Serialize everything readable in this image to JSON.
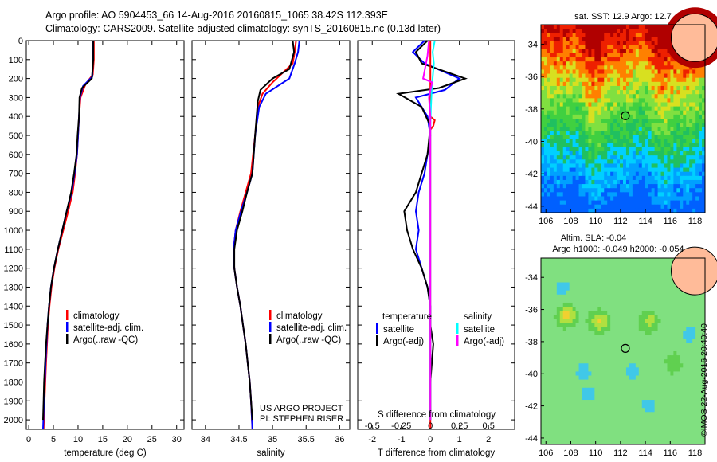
{
  "header": {
    "line1": "Argo profile: AO 5904453_66 14-Aug-2016 20160815_1065 38.42S 112.393E",
    "line2": "Climatology: CARS2009. Satellite-adjusted climatology: synTS_20160815.nc (0.13d later)"
  },
  "credit": "©IMOS 22-Aug-2016 20:40:40",
  "colors": {
    "climatology": "#ff0000",
    "satellite_t": "#0000ff",
    "argo": "#000000",
    "satellite_s": "#00ffff",
    "argo_s": "#ff00ff",
    "land": "#ffbb99"
  },
  "chart_data": [
    {
      "id": "temperature",
      "type": "line",
      "xlabel": "temperature (deg C)",
      "ylabel": "",
      "xlim": [
        -0.5,
        31.5
      ],
      "ylim": [
        2050,
        0
      ],
      "xticks": [
        0,
        5,
        10,
        15,
        20,
        25,
        30
      ],
      "yticks": [
        0,
        100,
        200,
        300,
        400,
        500,
        600,
        700,
        800,
        900,
        1000,
        1100,
        1200,
        1300,
        1400,
        1500,
        1600,
        1700,
        1800,
        1900,
        2000
      ],
      "legend": [
        "climatology",
        "satellite-adj. clim.",
        "Argo(..raw -QC)"
      ],
      "series": [
        {
          "name": "climatology",
          "color": "#ff0000",
          "points": [
            [
              13.2,
              0
            ],
            [
              13.2,
              100
            ],
            [
              13.0,
              180
            ],
            [
              11.5,
              230
            ],
            [
              10.5,
              300
            ],
            [
              10.2,
              400
            ],
            [
              10.0,
              500
            ],
            [
              9.8,
              600
            ],
            [
              9.4,
              700
            ],
            [
              8.9,
              800
            ],
            [
              8.0,
              900
            ],
            [
              7.0,
              1000
            ],
            [
              6.0,
              1100
            ],
            [
              5.2,
              1200
            ],
            [
              4.6,
              1300
            ],
            [
              4.2,
              1400
            ],
            [
              3.9,
              1500
            ],
            [
              3.5,
              1700
            ],
            [
              3.2,
              1900
            ],
            [
              3.0,
              2050
            ]
          ]
        },
        {
          "name": "satellite-adj. clim.",
          "color": "#0000ff",
          "points": [
            [
              13.0,
              0
            ],
            [
              13.0,
              100
            ],
            [
              12.9,
              190
            ],
            [
              11.0,
              240
            ],
            [
              10.4,
              300
            ],
            [
              10.2,
              400
            ],
            [
              10.0,
              500
            ],
            [
              9.8,
              600
            ],
            [
              9.3,
              700
            ],
            [
              8.7,
              800
            ],
            [
              7.7,
              900
            ],
            [
              6.8,
              1000
            ],
            [
              5.9,
              1100
            ],
            [
              5.1,
              1200
            ],
            [
              4.5,
              1300
            ],
            [
              4.1,
              1400
            ],
            [
              3.8,
              1500
            ],
            [
              3.4,
              1700
            ],
            [
              3.1,
              1900
            ],
            [
              2.9,
              2050
            ]
          ]
        },
        {
          "name": "Argo(..raw -QC)",
          "color": "#000000",
          "points": [
            [
              13.1,
              0
            ],
            [
              13.1,
              100
            ],
            [
              12.8,
              200
            ],
            [
              10.8,
              250
            ],
            [
              10.3,
              300
            ],
            [
              10.2,
              400
            ],
            [
              9.9,
              500
            ],
            [
              9.7,
              600
            ],
            [
              9.2,
              700
            ],
            [
              8.6,
              800
            ],
            [
              7.7,
              900
            ],
            [
              6.8,
              1000
            ],
            [
              5.9,
              1100
            ],
            [
              5.1,
              1200
            ],
            [
              4.5,
              1300
            ],
            [
              4.1,
              1400
            ],
            [
              3.8,
              1500
            ],
            [
              3.5,
              1600
            ],
            [
              3.3,
              1700
            ],
            [
              3.1,
              1800
            ],
            [
              3.0,
              1900
            ],
            [
              2.9,
              2000
            ]
          ]
        }
      ]
    },
    {
      "id": "salinity",
      "type": "line",
      "xlabel": "salinity",
      "xlim": [
        33.8,
        36.15
      ],
      "ylim": [
        2050,
        0
      ],
      "xticks": [
        34,
        34.5,
        35,
        35.5,
        36
      ],
      "legend": [
        "climatology",
        "satellite-adj. clim.",
        "Argo(..raw -QC)"
      ],
      "annotation": [
        "US ARGO PROJECT",
        "PI: STEPHEN RISER"
      ],
      "series": [
        {
          "name": "climatology",
          "color": "#ff0000",
          "points": [
            [
              35.35,
              0
            ],
            [
              35.33,
              60
            ],
            [
              35.3,
              120
            ],
            [
              35.0,
              220
            ],
            [
              34.85,
              280
            ],
            [
              34.78,
              350
            ],
            [
              34.74,
              500
            ],
            [
              34.68,
              700
            ],
            [
              34.6,
              800
            ],
            [
              34.52,
              900
            ],
            [
              34.45,
              1000
            ],
            [
              34.42,
              1100
            ],
            [
              34.43,
              1200
            ],
            [
              34.47,
              1300
            ],
            [
              34.52,
              1400
            ],
            [
              34.56,
              1500
            ],
            [
              34.6,
              1600
            ],
            [
              34.63,
              1700
            ],
            [
              34.66,
              1800
            ],
            [
              34.68,
              1900
            ],
            [
              34.7,
              2050
            ]
          ]
        },
        {
          "name": "satellite-adj. clim.",
          "color": "#0000ff",
          "points": [
            [
              35.4,
              0
            ],
            [
              35.38,
              60
            ],
            [
              35.33,
              120
            ],
            [
              35.25,
              200
            ],
            [
              34.9,
              280
            ],
            [
              34.8,
              350
            ],
            [
              34.74,
              500
            ],
            [
              34.7,
              700
            ],
            [
              34.62,
              800
            ],
            [
              34.53,
              900
            ],
            [
              34.45,
              1000
            ],
            [
              34.42,
              1100
            ],
            [
              34.43,
              1200
            ],
            [
              34.47,
              1300
            ],
            [
              34.52,
              1400
            ],
            [
              34.56,
              1500
            ],
            [
              34.6,
              1600
            ],
            [
              34.63,
              1700
            ],
            [
              34.66,
              1800
            ],
            [
              34.68,
              1900
            ],
            [
              34.7,
              2050
            ]
          ]
        },
        {
          "name": "Argo(..raw -QC)",
          "color": "#000000",
          "points": [
            [
              35.3,
              0
            ],
            [
              35.32,
              60
            ],
            [
              35.25,
              150
            ],
            [
              35.0,
              200
            ],
            [
              34.82,
              260
            ],
            [
              34.78,
              320
            ],
            [
              34.74,
              500
            ],
            [
              34.7,
              700
            ],
            [
              34.62,
              800
            ],
            [
              34.55,
              900
            ],
            [
              34.47,
              1000
            ],
            [
              34.43,
              1100
            ],
            [
              34.43,
              1200
            ],
            [
              34.47,
              1300
            ],
            [
              34.52,
              1400
            ],
            [
              34.56,
              1500
            ],
            [
              34.6,
              1600
            ],
            [
              34.63,
              1700
            ],
            [
              34.66,
              1800
            ],
            [
              34.68,
              1900
            ],
            [
              34.7,
              2000
            ]
          ]
        }
      ]
    },
    {
      "id": "difference",
      "type": "line",
      "xlabel": "T difference from climatology",
      "xlabel_top": "S difference from climatology",
      "xlim": [
        -2.5,
        2.9
      ],
      "ylim": [
        2050,
        0
      ],
      "xticks": [
        -2,
        -1,
        0,
        1,
        2
      ],
      "xticks_s": [
        -0.5,
        -0.25,
        0,
        0.25,
        0.5
      ],
      "legend_headers": [
        "temperature",
        "salinity"
      ],
      "legend": [
        "satellite",
        "Argo(-adj)",
        "satellite",
        "Argo(-adj)"
      ],
      "series": [
        {
          "name": "T satellite",
          "color": "#0000ff",
          "points": [
            [
              -0.2,
              0
            ],
            [
              -0.6,
              60
            ],
            [
              -0.2,
              120
            ],
            [
              1.0,
              200
            ],
            [
              0.5,
              260
            ],
            [
              -0.5,
              300
            ],
            [
              -0.1,
              400
            ],
            [
              0,
              500
            ],
            [
              -0.1,
              600
            ],
            [
              -0.2,
              700
            ],
            [
              -0.4,
              800
            ],
            [
              -0.5,
              900
            ],
            [
              -0.4,
              1000
            ],
            [
              -0.5,
              1100
            ],
            [
              -0.3,
              1200
            ],
            [
              -0.1,
              1300
            ],
            [
              0,
              1400
            ],
            [
              0,
              1500
            ],
            [
              0,
              2000
            ]
          ]
        },
        {
          "name": "T Argo(-adj)",
          "color": "#000000",
          "points": [
            [
              -0.1,
              0
            ],
            [
              -0.5,
              60
            ],
            [
              -0.3,
              120
            ],
            [
              1.2,
              200
            ],
            [
              0.3,
              250
            ],
            [
              -1.1,
              280
            ],
            [
              -0.3,
              350
            ],
            [
              0,
              450
            ],
            [
              -0.1,
              600
            ],
            [
              -0.3,
              700
            ],
            [
              -0.5,
              800
            ],
            [
              -0.9,
              900
            ],
            [
              -0.8,
              1000
            ],
            [
              -0.6,
              1100
            ],
            [
              -0.3,
              1200
            ],
            [
              -0.1,
              1300
            ],
            [
              0,
              1400
            ],
            [
              0,
              1500
            ],
            [
              0.1,
              1600
            ],
            [
              0,
              1800
            ],
            [
              0,
              2000
            ]
          ]
        },
        {
          "name": "T climatology",
          "color": "#ff0000",
          "points": [
            [
              0,
              0
            ],
            [
              0,
              400
            ],
            [
              0.15,
              420
            ],
            [
              0.1,
              450
            ],
            [
              0,
              470
            ],
            [
              0,
              2050
            ]
          ]
        },
        {
          "name": "S satellite",
          "color": "#00ffff",
          "points": [
            [
              0.15,
              0
            ],
            [
              0.08,
              60
            ],
            [
              0.12,
              120
            ],
            [
              0.05,
              250
            ],
            [
              0.02,
              350
            ],
            [
              0,
              450
            ],
            [
              0,
              2000
            ]
          ]
        },
        {
          "name": "S Argo(-adj)",
          "color": "#ff00ff",
          "points": [
            [
              -0.05,
              0
            ],
            [
              -0.1,
              80
            ],
            [
              -0.25,
              200
            ],
            [
              0.06,
              220
            ],
            [
              -0.05,
              300
            ],
            [
              0,
              400
            ],
            [
              0,
              2000
            ]
          ]
        }
      ]
    },
    {
      "id": "sst_map",
      "type": "heatmap",
      "title": "sat. SST: 12.9  Argo: 12.7",
      "xlim": [
        105.6,
        118.8
      ],
      "ylim": [
        -44.4,
        -32.8
      ],
      "xticks": [
        106,
        108,
        110,
        112,
        114,
        116,
        118
      ],
      "yticks": [
        -34,
        -36,
        -38,
        -40,
        -42,
        -44
      ],
      "marker": [
        112.39,
        -38.42
      ],
      "land_center": [
        118.0,
        -33.6
      ],
      "palette": [
        "#0060ff",
        "#00a0ff",
        "#00d0ff",
        "#20c060",
        "#40d040",
        "#80e040",
        "#d8e020",
        "#ff8000",
        "#ee2000",
        "#b00000"
      ],
      "value_hint": "SST gradient: cold (blue) south to warm (red) north"
    },
    {
      "id": "sla_map",
      "type": "heatmap",
      "title1": "Altim. SLA: -0.04",
      "title2": "Argo h1000: -0.049  h2000: -0.054",
      "xlim": [
        105.6,
        118.8
      ],
      "ylim": [
        -44.4,
        -32.8
      ],
      "xticks": [
        106,
        108,
        110,
        112,
        114,
        116,
        118
      ],
      "yticks": [
        -34,
        -36,
        -38,
        -40,
        -42,
        -44
      ],
      "marker": [
        112.39,
        -38.42
      ],
      "land_center": [
        118.0,
        -33.6
      ],
      "palette": [
        "#40c8e8",
        "#80e080",
        "#60d050",
        "#b0e040",
        "#f0d030",
        "#f0a030"
      ],
      "value_hint": "sea level anomaly mostly near zero (green)"
    }
  ]
}
